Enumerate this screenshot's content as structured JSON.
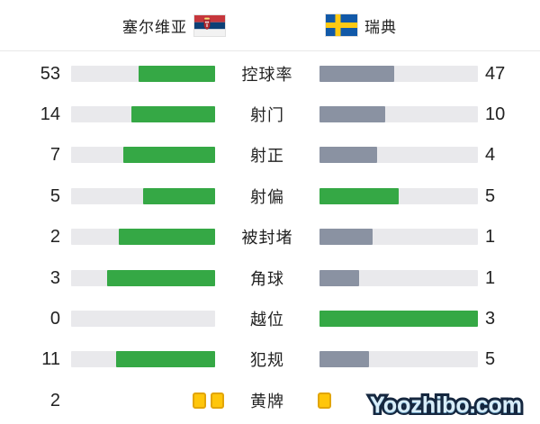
{
  "header": {
    "home_team": "塞尔维亚",
    "away_team": "瑞典"
  },
  "colors": {
    "home_fill": "#35a845",
    "away_fill": "#8a92a2",
    "away_fill_highlight": "#35a845",
    "track": "#e9e9ec",
    "card_fill": "#ffc60a",
    "card_border": "#e2a509",
    "text": "#222222",
    "divider": "#e8e8e8"
  },
  "stats": [
    {
      "label": "控球率",
      "home": 53,
      "away": 47,
      "away_green": false,
      "type": "bar"
    },
    {
      "label": "射门",
      "home": 14,
      "away": 10,
      "away_green": false,
      "type": "bar"
    },
    {
      "label": "射正",
      "home": 7,
      "away": 4,
      "away_green": false,
      "type": "bar"
    },
    {
      "label": "射偏",
      "home": 5,
      "away": 5,
      "away_green": true,
      "type": "bar"
    },
    {
      "label": "被封堵",
      "home": 2,
      "away": 1,
      "away_green": false,
      "type": "bar"
    },
    {
      "label": "角球",
      "home": 3,
      "away": 1,
      "away_green": false,
      "type": "bar"
    },
    {
      "label": "越位",
      "home": 0,
      "away": 3,
      "away_green": true,
      "type": "bar"
    },
    {
      "label": "犯规",
      "home": 11,
      "away": 5,
      "away_green": false,
      "type": "bar"
    },
    {
      "label": "黄牌",
      "home": 2,
      "away": 1,
      "away_green": false,
      "type": "cards",
      "show_away_number": false
    }
  ],
  "watermark": "Yoozhibo.com",
  "chart_data": {
    "type": "bar",
    "orientation": "horizontal-paired",
    "categories": [
      "控球率",
      "射门",
      "射正",
      "射偏",
      "被封堵",
      "角球",
      "越位",
      "犯规",
      "黄牌"
    ],
    "series": [
      {
        "name": "塞尔维亚",
        "values": [
          53,
          14,
          7,
          5,
          2,
          3,
          0,
          11,
          2
        ]
      },
      {
        "name": "瑞典",
        "values": [
          47,
          10,
          4,
          5,
          1,
          1,
          3,
          5,
          1
        ]
      }
    ],
    "notes": "Each paired bar is filled proportionally to value/(home+away); home fills anchor right (green), away fills anchor left (gray, green when away >= home); 黄牌 row shows yellow card icons instead of bars",
    "legend_position": "top",
    "grid": false
  }
}
